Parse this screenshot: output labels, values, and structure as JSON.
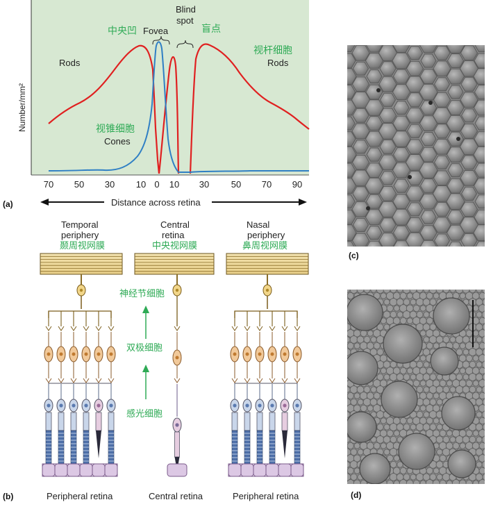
{
  "panel_a": {
    "tag": "(a)",
    "ylabel": "Number/mm²",
    "xaxis_caption": "Distance across retina",
    "ticks": [
      "70",
      "50",
      "30",
      "10",
      "0",
      "10",
      "30",
      "50",
      "70",
      "90"
    ],
    "labels": {
      "fovea_cn": "中央凹",
      "fovea_en": "Fovea",
      "blind_en_1": "Blind",
      "blind_en_2": "spot",
      "blind_cn": "盲点",
      "rods_left": "Rods",
      "rods_cn": "视杆细胞",
      "rods_right": "Rods",
      "cones_cn": "视锥细胞",
      "cones_en": "Cones"
    },
    "colors": {
      "background": "#d7e8d2",
      "rods": "#e02020",
      "cones": "#2f7fc4",
      "chinese_labels": "#2eaa55"
    }
  },
  "panel_b": {
    "tag": "(b)",
    "columns": [
      {
        "line1": "Temporal",
        "line2": "periphery",
        "cn": "颞周视网膜",
        "caption": "Peripheral retina"
      },
      {
        "line1": "Central",
        "line2": "retina",
        "cn": "中央视网膜",
        "caption": "Central retina"
      },
      {
        "line1": "Nasal",
        "line2": "periphery",
        "cn": "鼻周视网膜",
        "caption": "Peripheral retina"
      }
    ],
    "cell_labels": {
      "ganglion": "神经节细胞",
      "bipolar": "双极细胞",
      "photoreceptor": "感光细胞"
    }
  },
  "panel_c": {
    "tag": "(c)"
  },
  "panel_d": {
    "tag": "(d)"
  }
}
